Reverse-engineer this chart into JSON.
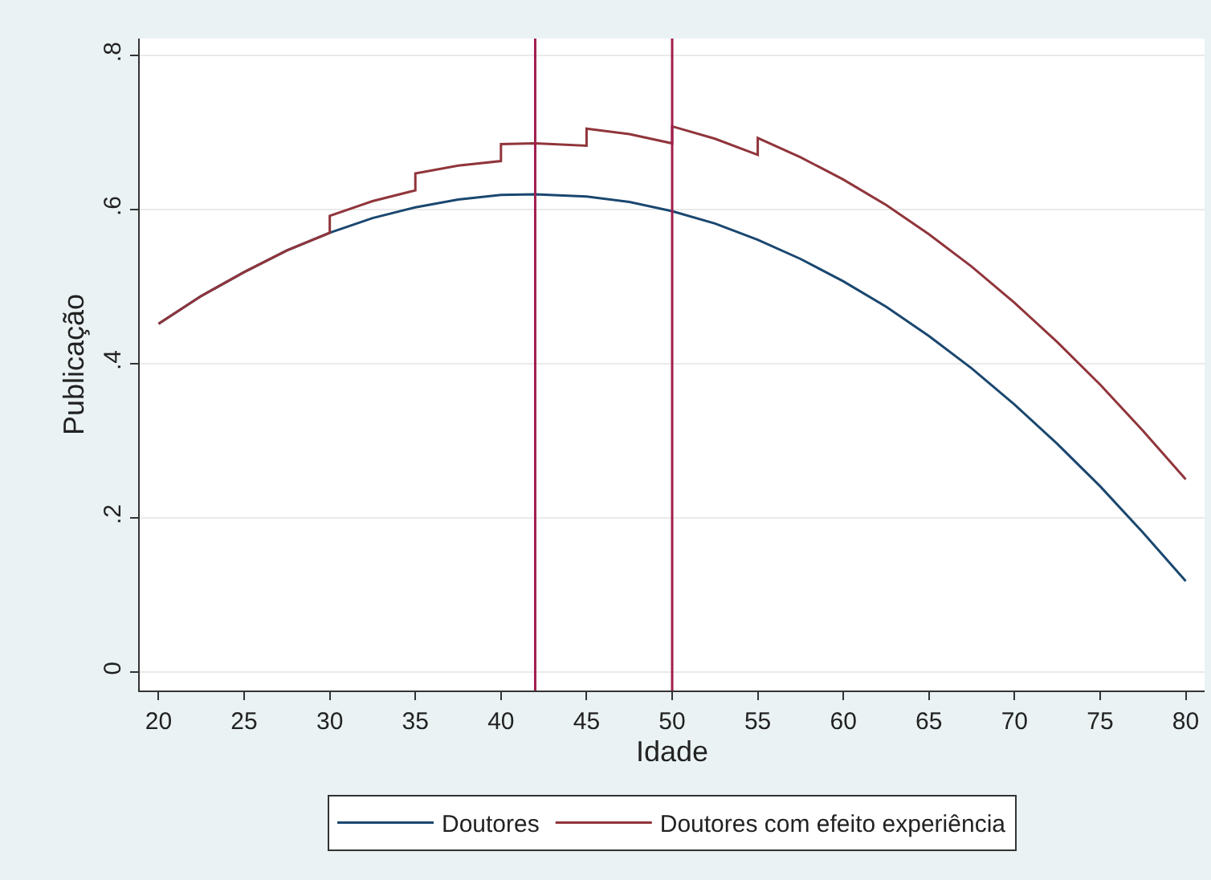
{
  "chart_data": {
    "type": "line",
    "xlabel": "Idade",
    "ylabel": "Publicação",
    "xlim": [
      18.9,
      81.1
    ],
    "xticks": [
      20,
      25,
      30,
      35,
      40,
      45,
      50,
      55,
      60,
      65,
      70,
      75,
      80
    ],
    "ylim": [
      -0.024,
      0.822
    ],
    "yticks": [
      0,
      {
        "value": 0.2,
        "label": ".2"
      },
      {
        "value": 0.4,
        "label": ".4"
      },
      {
        "value": 0.6,
        "label": ".6"
      },
      {
        "value": 0.8,
        "label": ".8"
      }
    ],
    "grid": "y",
    "legend": "bottom",
    "marker": "none",
    "line_style": "solid",
    "series": [
      {
        "name": "Doutores",
        "color": "#1a476f",
        "x": [
          20,
          22.5,
          25,
          27.5,
          30,
          32.5,
          35,
          37.5,
          40,
          42,
          45,
          47.5,
          50,
          52.5,
          55,
          57.5,
          60,
          62.5,
          65,
          67.5,
          70,
          72.5,
          75,
          77.5,
          80
        ],
        "values": [
          0.452,
          0.488,
          0.519,
          0.547,
          0.57,
          0.589,
          0.603,
          0.613,
          0.619,
          0.62,
          0.617,
          0.61,
          0.598,
          0.582,
          0.561,
          0.536,
          0.507,
          0.474,
          0.436,
          0.394,
          0.347,
          0.296,
          0.241,
          0.181,
          0.118
        ]
      },
      {
        "name": "Doutores com efeito experiência",
        "color": "#90353b",
        "x": [
          20,
          22.5,
          25,
          27.5,
          30,
          30,
          32.5,
          35,
          35,
          37.5,
          40,
          40,
          42,
          45,
          45,
          47.5,
          50,
          50,
          52.5,
          55,
          55,
          57.5,
          60,
          62.5,
          65,
          67.5,
          70,
          72.5,
          75,
          77.5,
          80
        ],
        "values": [
          0.452,
          0.488,
          0.519,
          0.547,
          0.57,
          0.592,
          0.611,
          0.625,
          0.647,
          0.657,
          0.663,
          0.685,
          0.686,
          0.683,
          0.705,
          0.698,
          0.686,
          0.708,
          0.692,
          0.671,
          0.693,
          0.668,
          0.639,
          0.606,
          0.568,
          0.526,
          0.479,
          0.428,
          0.373,
          0.313,
          0.25
        ]
      }
    ],
    "ref_lines": [
      {
        "axis": "x",
        "value": 42,
        "color": "#a01f4e"
      },
      {
        "axis": "x",
        "value": 50,
        "color": "#a01f4e"
      }
    ]
  }
}
